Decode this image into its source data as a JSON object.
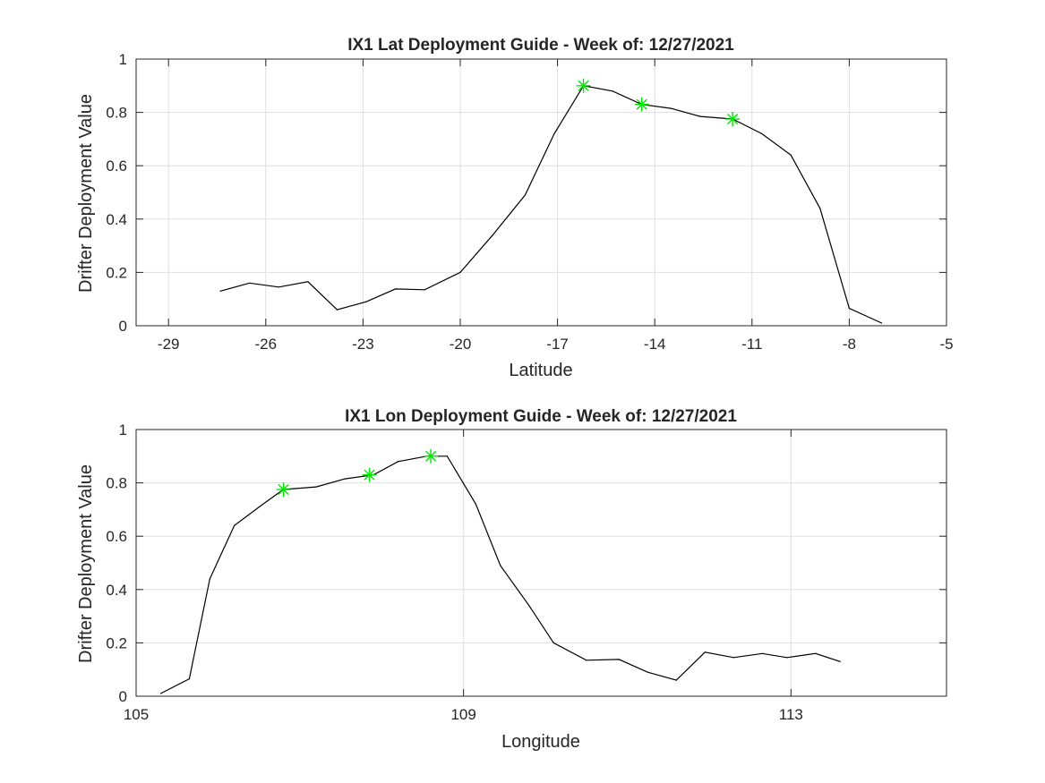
{
  "chart_data": [
    {
      "type": "line",
      "title": "IX1 Lat Deployment Guide - Week of: 12/27/2021",
      "xlabel": "Latitude",
      "ylabel": "Drifter Deployment Value",
      "xlim": [
        -30,
        -5
      ],
      "ylim": [
        0,
        1
      ],
      "xticks": [
        -29,
        -26,
        -23,
        -20,
        -17,
        -14,
        -11,
        -8,
        -5
      ],
      "xtick_labels": [
        "-29",
        "-26",
        "-23",
        "-20",
        "-17",
        "-14",
        "-11",
        "-8",
        "-5"
      ],
      "yticks": [
        0,
        0.2,
        0.4,
        0.6,
        0.8,
        1
      ],
      "ytick_labels": [
        "0",
        "0.2",
        "0.4",
        "0.6",
        "0.8",
        "1"
      ],
      "grid": true,
      "series": [
        {
          "color": "#000000",
          "x": [
            -27.4,
            -26.5,
            -25.6,
            -24.7,
            -23.8,
            -22.9,
            -22.0,
            -21.1,
            -20.0,
            -19.0,
            -18.0,
            -17.1,
            -16.2,
            -15.3,
            -14.4,
            -13.5,
            -12.6,
            -11.6,
            -10.7,
            -9.8,
            -8.9,
            -8.0,
            -7.0
          ],
          "y": [
            0.13,
            0.16,
            0.145,
            0.165,
            0.06,
            0.09,
            0.138,
            0.135,
            0.2,
            0.34,
            0.49,
            0.72,
            0.9,
            0.88,
            0.83,
            0.815,
            0.785,
            0.775,
            0.72,
            0.64,
            0.44,
            0.065,
            0.01
          ]
        }
      ],
      "highlights": {
        "color": "#00e600",
        "marker": "asterisk",
        "x": [
          -16.2,
          -14.4,
          -11.6
        ],
        "y": [
          0.9,
          0.83,
          0.775
        ]
      }
    },
    {
      "type": "line",
      "title": "IX1 Lon Deployment Guide - Week of: 12/27/2021",
      "xlabel": "Longitude",
      "ylabel": "Drifter Deployment Value",
      "xlim": [
        105,
        114.9
      ],
      "ylim": [
        0,
        1
      ],
      "xticks": [
        105,
        109,
        113
      ],
      "xtick_labels": [
        "105",
        "109",
        "113"
      ],
      "yticks": [
        0,
        0.2,
        0.4,
        0.6,
        0.8,
        1
      ],
      "ytick_labels": [
        "0",
        "0.2",
        "0.4",
        "0.6",
        "0.8",
        "1"
      ],
      "grid": true,
      "series": [
        {
          "color": "#000000",
          "x": [
            105.3,
            105.65,
            105.9,
            106.2,
            106.55,
            106.8,
            107.2,
            107.55,
            107.9,
            108.2,
            108.55,
            108.8,
            109.15,
            109.45,
            109.8,
            110.1,
            110.5,
            110.9,
            111.25,
            111.6,
            111.95,
            112.3,
            112.65,
            112.95,
            113.3,
            113.6
          ],
          "y": [
            0.01,
            0.065,
            0.44,
            0.64,
            0.72,
            0.775,
            0.785,
            0.815,
            0.83,
            0.88,
            0.9,
            0.9,
            0.72,
            0.49,
            0.34,
            0.2,
            0.135,
            0.138,
            0.09,
            0.06,
            0.165,
            0.145,
            0.16,
            0.145,
            0.16,
            0.13
          ]
        }
      ],
      "highlights": {
        "color": "#00e600",
        "marker": "asterisk",
        "x": [
          106.8,
          107.85,
          108.6
        ],
        "y": [
          0.775,
          0.83,
          0.9
        ]
      }
    }
  ]
}
